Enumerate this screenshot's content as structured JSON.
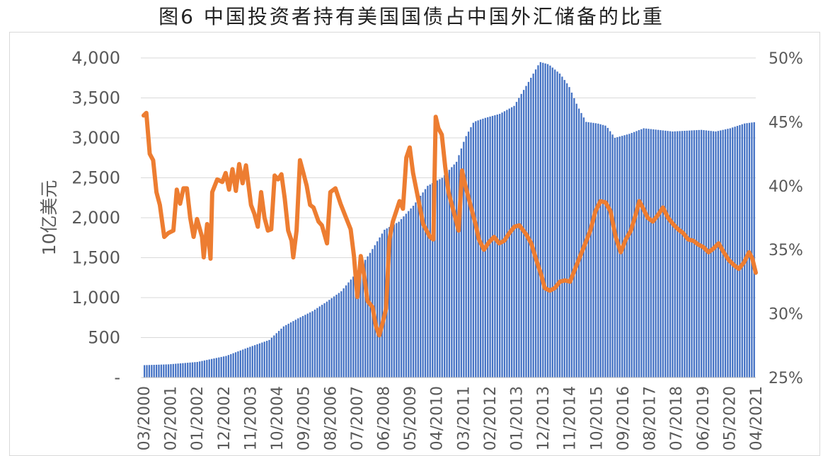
{
  "title": "图6   中国投资者持有美国国债占中国外汇储备的比重",
  "chart_data": {
    "type": "bar+line",
    "ylabel": "10亿美元",
    "y_left_ticks": [
      "-",
      "500",
      "1,000",
      "1,500",
      "2,000",
      "2,500",
      "3,000",
      "3,500",
      "4,000"
    ],
    "y_left_range": [
      0,
      4000
    ],
    "y_right_ticks": [
      "25%",
      "30%",
      "35%",
      "40%",
      "45%",
      "50%"
    ],
    "y_right_range": [
      25,
      50
    ],
    "x_ticks": [
      "03/2000",
      "02/2001",
      "01/2002",
      "12/2002",
      "11/2003",
      "10/2004",
      "09/2005",
      "08/2006",
      "07/2007",
      "06/2008",
      "05/2009",
      "04/2010",
      "03/2011",
      "02/2012",
      "01/2013",
      "12/2013",
      "11/2014",
      "10/2015",
      "09/2016",
      "08/2017",
      "07/2018",
      "06/2019",
      "05/2020",
      "04/2021"
    ],
    "grid": true,
    "colors": {
      "bars": "#4472c4",
      "line": "#ed7d31",
      "grid": "#d9d9d9"
    },
    "bar_anchors": [
      [
        2000.17,
        155
      ],
      [
        2001.0,
        165
      ],
      [
        2002.0,
        195
      ],
      [
        2003.0,
        270
      ],
      [
        2003.8,
        380
      ],
      [
        2004.5,
        470
      ],
      [
        2005.0,
        640
      ],
      [
        2005.5,
        740
      ],
      [
        2006.0,
        830
      ],
      [
        2006.5,
        950
      ],
      [
        2007.0,
        1080
      ],
      [
        2007.5,
        1300
      ],
      [
        2008.0,
        1560
      ],
      [
        2008.5,
        1850
      ],
      [
        2009.0,
        1950
      ],
      [
        2009.5,
        2150
      ],
      [
        2010.0,
        2400
      ],
      [
        2010.5,
        2500
      ],
      [
        2011.0,
        2700
      ],
      [
        2011.3,
        3000
      ],
      [
        2011.6,
        3200
      ],
      [
        2012.0,
        3250
      ],
      [
        2012.5,
        3300
      ],
      [
        2013.0,
        3400
      ],
      [
        2013.5,
        3700
      ],
      [
        2013.9,
        3950
      ],
      [
        2014.2,
        3920
      ],
      [
        2014.6,
        3800
      ],
      [
        2014.9,
        3650
      ],
      [
        2015.2,
        3400
      ],
      [
        2015.5,
        3200
      ],
      [
        2015.9,
        3180
      ],
      [
        2016.2,
        3150
      ],
      [
        2016.5,
        3000
      ],
      [
        2017.0,
        3050
      ],
      [
        2017.5,
        3120
      ],
      [
        2018.0,
        3100
      ],
      [
        2018.5,
        3080
      ],
      [
        2019.0,
        3090
      ],
      [
        2019.5,
        3100
      ],
      [
        2020.0,
        3080
      ],
      [
        2020.5,
        3120
      ],
      [
        2021.0,
        3180
      ],
      [
        2021.42,
        3200
      ]
    ],
    "line_anchors": [
      [
        2000.17,
        45.5
      ],
      [
        2000.25,
        45.7
      ],
      [
        2000.35,
        42.5
      ],
      [
        2000.45,
        42.0
      ],
      [
        2000.55,
        39.5
      ],
      [
        2000.65,
        38.5
      ],
      [
        2000.78,
        36.0
      ],
      [
        2000.9,
        36.3
      ],
      [
        2001.05,
        36.5
      ],
      [
        2001.15,
        39.7
      ],
      [
        2001.25,
        38.6
      ],
      [
        2001.35,
        39.8
      ],
      [
        2001.45,
        39.8
      ],
      [
        2001.55,
        37.5
      ],
      [
        2001.65,
        36.0
      ],
      [
        2001.75,
        37.4
      ],
      [
        2001.9,
        36.0
      ],
      [
        2001.95,
        34.4
      ],
      [
        2002.05,
        37.0
      ],
      [
        2002.15,
        34.3
      ],
      [
        2002.2,
        39.5
      ],
      [
        2002.35,
        40.5
      ],
      [
        2002.5,
        40.3
      ],
      [
        2002.6,
        41.0
      ],
      [
        2002.7,
        39.7
      ],
      [
        2002.8,
        41.3
      ],
      [
        2002.9,
        39.6
      ],
      [
        2003.0,
        41.7
      ],
      [
        2003.1,
        40.2
      ],
      [
        2003.2,
        41.6
      ],
      [
        2003.35,
        38.5
      ],
      [
        2003.45,
        37.8
      ],
      [
        2003.55,
        36.8
      ],
      [
        2003.65,
        39.5
      ],
      [
        2003.75,
        37.5
      ],
      [
        2003.85,
        36.5
      ],
      [
        2003.95,
        36.6
      ],
      [
        2004.05,
        40.8
      ],
      [
        2004.15,
        40.5
      ],
      [
        2004.25,
        40.9
      ],
      [
        2004.35,
        39.0
      ],
      [
        2004.45,
        36.5
      ],
      [
        2004.55,
        35.7
      ],
      [
        2004.6,
        34.4
      ],
      [
        2004.7,
        36.5
      ],
      [
        2004.8,
        42.0
      ],
      [
        2004.9,
        41.0
      ],
      [
        2005.0,
        40.0
      ],
      [
        2005.1,
        38.5
      ],
      [
        2005.2,
        38.3
      ],
      [
        2005.35,
        37.2
      ],
      [
        2005.45,
        36.9
      ],
      [
        2005.6,
        35.5
      ],
      [
        2005.7,
        39.5
      ],
      [
        2005.85,
        39.8
      ],
      [
        2006.0,
        38.6
      ],
      [
        2006.15,
        37.6
      ],
      [
        2006.3,
        36.6
      ],
      [
        2006.4,
        34.5
      ],
      [
        2006.5,
        31.3
      ],
      [
        2006.6,
        34.5
      ],
      [
        2006.7,
        33.0
      ],
      [
        2006.8,
        31.0
      ],
      [
        2006.95,
        30.5
      ],
      [
        2007.05,
        29.0
      ],
      [
        2007.15,
        28.3
      ],
      [
        2007.25,
        29.3
      ],
      [
        2007.35,
        30.4
      ],
      [
        2007.45,
        35.8
      ],
      [
        2007.55,
        37.2
      ],
      [
        2007.65,
        38.0
      ],
      [
        2007.75,
        38.8
      ],
      [
        2007.85,
        38.2
      ],
      [
        2007.95,
        42.2
      ],
      [
        2008.05,
        43.0
      ],
      [
        2008.15,
        41.0
      ],
      [
        2008.3,
        39.0
      ],
      [
        2008.45,
        37.0
      ],
      [
        2008.55,
        36.5
      ],
      [
        2008.65,
        36.0
      ],
      [
        2008.75,
        35.8
      ],
      [
        2008.82,
        45.4
      ],
      [
        2008.9,
        44.5
      ],
      [
        2009.0,
        44.0
      ],
      [
        2009.1,
        41.5
      ],
      [
        2009.2,
        39.5
      ],
      [
        2009.3,
        38.5
      ],
      [
        2009.4,
        37.5
      ],
      [
        2009.5,
        36.5
      ],
      [
        2009.6,
        41.2
      ],
      [
        2009.7,
        40.0
      ],
      [
        2009.85,
        38.5
      ],
      [
        2010.0,
        37.0
      ],
      [
        2010.1,
        35.8
      ],
      [
        2010.25,
        35.0
      ],
      [
        2010.4,
        35.6
      ],
      [
        2010.55,
        36.0
      ],
      [
        2010.7,
        35.5
      ],
      [
        2010.85,
        35.7
      ],
      [
        2011.0,
        36.3
      ],
      [
        2011.15,
        36.8
      ],
      [
        2011.3,
        36.9
      ],
      [
        2011.5,
        36.2
      ],
      [
        2011.65,
        35.5
      ],
      [
        2011.8,
        34.2
      ],
      [
        2011.95,
        33.0
      ],
      [
        2012.05,
        32.0
      ],
      [
        2012.2,
        31.8
      ],
      [
        2012.35,
        32.0
      ],
      [
        2012.5,
        32.5
      ],
      [
        2012.65,
        32.6
      ],
      [
        2012.8,
        32.5
      ],
      [
        2012.95,
        33.5
      ],
      [
        2013.1,
        34.5
      ],
      [
        2013.25,
        35.5
      ],
      [
        2013.4,
        36.5
      ],
      [
        2013.55,
        38.0
      ],
      [
        2013.7,
        38.8
      ],
      [
        2013.85,
        38.7
      ],
      [
        2014.0,
        38.0
      ],
      [
        2014.15,
        36.0
      ],
      [
        2014.3,
        34.8
      ],
      [
        2014.45,
        35.8
      ],
      [
        2014.6,
        36.5
      ],
      [
        2014.75,
        37.8
      ],
      [
        2014.85,
        38.8
      ],
      [
        2014.95,
        38.3
      ],
      [
        2015.1,
        37.5
      ],
      [
        2015.25,
        37.2
      ],
      [
        2015.4,
        37.7
      ],
      [
        2015.55,
        38.3
      ],
      [
        2015.7,
        37.5
      ],
      [
        2015.85,
        37.0
      ],
      [
        2016.0,
        36.6
      ],
      [
        2016.15,
        36.3
      ],
      [
        2016.3,
        35.8
      ],
      [
        2016.45,
        35.7
      ],
      [
        2016.6,
        35.4
      ],
      [
        2016.75,
        35.2
      ],
      [
        2016.9,
        34.8
      ],
      [
        2017.05,
        35.1
      ],
      [
        2017.2,
        35.5
      ],
      [
        2017.35,
        34.8
      ],
      [
        2017.5,
        34.2
      ],
      [
        2017.65,
        33.8
      ],
      [
        2017.8,
        33.5
      ],
      [
        2017.95,
        34.0
      ],
      [
        2018.1,
        34.8
      ],
      [
        2018.2,
        34.3
      ],
      [
        2018.3,
        33.2
      ]
    ],
    "line_time_rescale": {
      "note": "line anchors use its own timeline; mapped to axis by script"
    }
  }
}
